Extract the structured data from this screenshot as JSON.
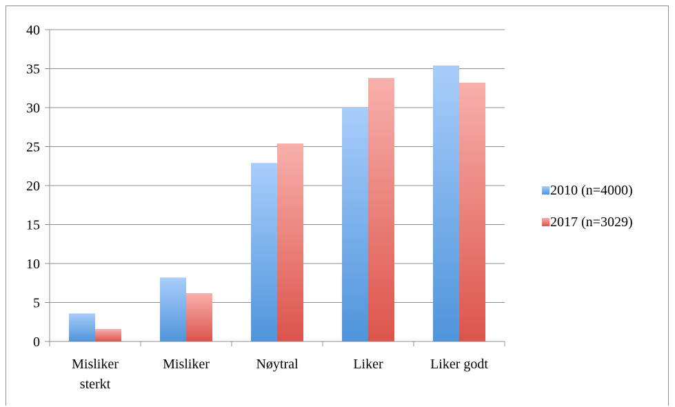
{
  "chart_data": {
    "type": "bar",
    "categories": [
      [
        "Misliker",
        "sterkt"
      ],
      [
        "Misliker"
      ],
      [
        "Nøytral"
      ],
      [
        "Liker"
      ],
      [
        "Liker godt"
      ]
    ],
    "series": [
      {
        "name": "2010 (n=4000)",
        "values": [
          3.6,
          8.2,
          22.9,
          30.0,
          35.4
        ],
        "color_top": "#a9cdfa",
        "color_bottom": "#4f94db"
      },
      {
        "name": "2017 (n=3029)",
        "values": [
          1.6,
          6.2,
          25.4,
          33.8,
          33.2
        ],
        "color_top": "#f8b0ac",
        "color_bottom": "#dc544b"
      }
    ],
    "ylim": [
      0,
      40
    ],
    "yticks": [
      "0",
      "5",
      "10",
      "15",
      "20",
      "25",
      "30",
      "35",
      "40"
    ],
    "grid": true,
    "legend_position": "right",
    "title": "",
    "xlabel": "",
    "ylabel": ""
  }
}
